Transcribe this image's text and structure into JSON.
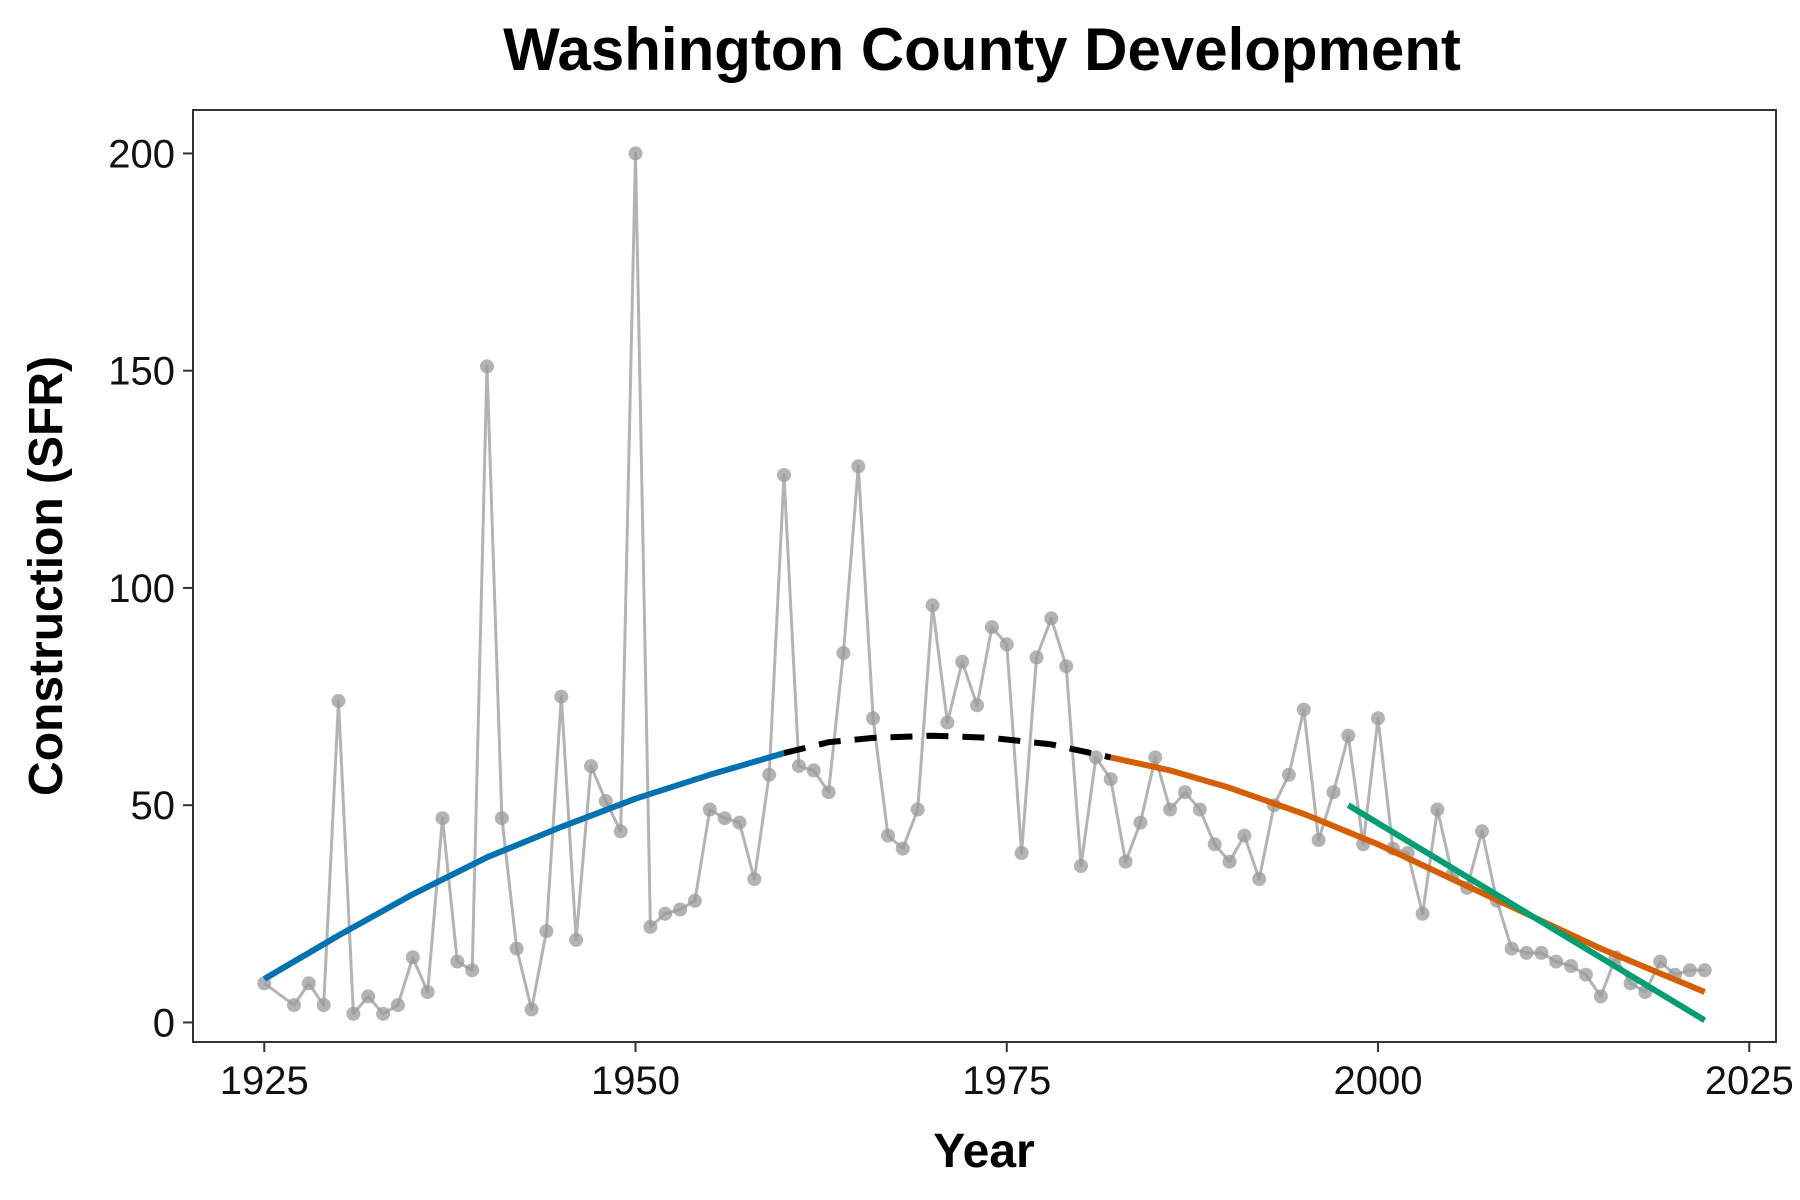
{
  "chart_data": {
    "type": "line",
    "title": "Washington County Development",
    "xlabel": "Year",
    "ylabel": "Construction (SFR)",
    "xlim": [
      1920.2,
      2026.8
    ],
    "ylim": [
      -4.5,
      210
    ],
    "x_ticks": [
      1925,
      1950,
      1975,
      2000,
      2025
    ],
    "y_ticks": [
      0,
      50,
      100,
      150,
      200
    ],
    "grid": false,
    "legend": "none",
    "series": [
      {
        "role": "observed",
        "color": "#b3b3b3",
        "marker": "circle",
        "points": [
          [
            1925,
            9
          ],
          [
            1927,
            4
          ],
          [
            1928,
            9
          ],
          [
            1929,
            4
          ],
          [
            1930,
            74
          ],
          [
            1931,
            2
          ],
          [
            1932,
            6
          ],
          [
            1933,
            2
          ],
          [
            1934,
            4
          ],
          [
            1935,
            15
          ],
          [
            1936,
            7
          ],
          [
            1937,
            47
          ],
          [
            1938,
            14
          ],
          [
            1939,
            12
          ],
          [
            1940,
            151
          ],
          [
            1941,
            47
          ],
          [
            1942,
            17
          ],
          [
            1943,
            3
          ],
          [
            1944,
            21
          ],
          [
            1945,
            75
          ],
          [
            1946,
            19
          ],
          [
            1947,
            59
          ],
          [
            1948,
            51
          ],
          [
            1949,
            44
          ],
          [
            1950,
            200
          ],
          [
            1951,
            22
          ],
          [
            1952,
            25
          ],
          [
            1953,
            26
          ],
          [
            1954,
            28
          ],
          [
            1955,
            49
          ],
          [
            1956,
            47
          ],
          [
            1957,
            46
          ],
          [
            1958,
            33
          ],
          [
            1959,
            57
          ],
          [
            1960,
            126
          ],
          [
            1961,
            59
          ],
          [
            1962,
            58
          ],
          [
            1963,
            53
          ],
          [
            1964,
            85
          ],
          [
            1965,
            128
          ],
          [
            1966,
            70
          ],
          [
            1967,
            43
          ],
          [
            1968,
            40
          ],
          [
            1969,
            49
          ],
          [
            1970,
            96
          ],
          [
            1971,
            69
          ],
          [
            1972,
            83
          ],
          [
            1973,
            73
          ],
          [
            1974,
            91
          ],
          [
            1975,
            87
          ],
          [
            1976,
            39
          ],
          [
            1977,
            84
          ],
          [
            1978,
            93
          ],
          [
            1979,
            82
          ],
          [
            1980,
            36
          ],
          [
            1981,
            61
          ],
          [
            1982,
            56
          ],
          [
            1983,
            37
          ],
          [
            1984,
            46
          ],
          [
            1985,
            61
          ],
          [
            1986,
            49
          ],
          [
            1987,
            53
          ],
          [
            1988,
            49
          ],
          [
            1989,
            41
          ],
          [
            1990,
            37
          ],
          [
            1991,
            43
          ],
          [
            1992,
            33
          ],
          [
            1993,
            50
          ],
          [
            1994,
            57
          ],
          [
            1995,
            72
          ],
          [
            1996,
            42
          ],
          [
            1997,
            53
          ],
          [
            1998,
            66
          ],
          [
            1999,
            41
          ],
          [
            2000,
            70
          ],
          [
            2001,
            40
          ],
          [
            2002,
            39
          ],
          [
            2003,
            25
          ],
          [
            2004,
            49
          ],
          [
            2005,
            34
          ],
          [
            2006,
            31
          ],
          [
            2007,
            44
          ],
          [
            2008,
            28
          ],
          [
            2009,
            17
          ],
          [
            2010,
            16
          ],
          [
            2011,
            16
          ],
          [
            2012,
            14
          ],
          [
            2013,
            13
          ],
          [
            2014,
            11
          ],
          [
            2015,
            6
          ],
          [
            2016,
            15
          ],
          [
            2017,
            9
          ],
          [
            2018,
            7
          ],
          [
            2019,
            14
          ],
          [
            2020,
            11
          ],
          [
            2021,
            12
          ],
          [
            2022,
            12
          ]
        ]
      },
      {
        "role": "fit",
        "color": "#0072b2",
        "dash": "solid",
        "points": [
          [
            1925,
            10
          ],
          [
            1930,
            20
          ],
          [
            1935,
            29.5
          ],
          [
            1940,
            38
          ],
          [
            1945,
            45
          ],
          [
            1950,
            51.5
          ],
          [
            1955,
            57
          ],
          [
            1960,
            62
          ]
        ]
      },
      {
        "role": "fit",
        "color": "#000000",
        "dash": "dashed",
        "points": [
          [
            1960,
            62
          ],
          [
            1963,
            64.5
          ],
          [
            1966,
            65.5
          ],
          [
            1970,
            66
          ],
          [
            1974,
            65.5
          ],
          [
            1978,
            64
          ],
          [
            1982,
            61
          ]
        ]
      },
      {
        "role": "fit",
        "color": "#d55e00",
        "dash": "solid",
        "points": [
          [
            1982,
            61
          ],
          [
            1986,
            58
          ],
          [
            1990,
            54
          ],
          [
            1995,
            48
          ],
          [
            2000,
            41
          ],
          [
            2005,
            33
          ],
          [
            2010,
            25
          ],
          [
            2015,
            17
          ],
          [
            2022,
            7
          ]
        ]
      },
      {
        "role": "fit",
        "color": "#009e73",
        "dash": "solid",
        "points": [
          [
            1998,
            50
          ],
          [
            2022,
            0.5
          ]
        ]
      }
    ]
  }
}
